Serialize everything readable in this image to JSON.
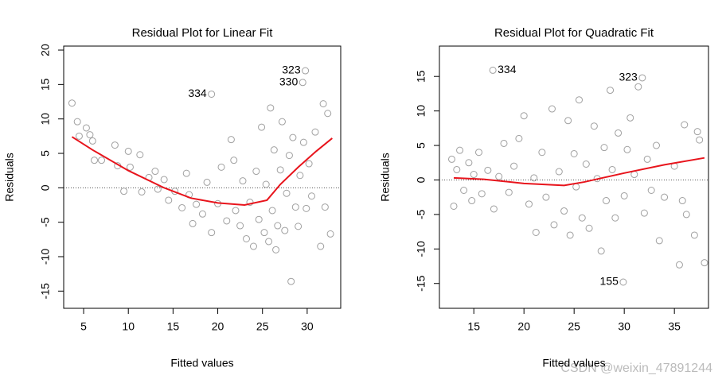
{
  "chart_data": [
    {
      "type": "scatter",
      "title": "Residual Plot for Linear Fit",
      "xlabel": "Fitted values",
      "ylabel": "Residuals",
      "xlim": [
        2.77,
        33.75
      ],
      "ylim": [
        -17.5,
        20.58
      ],
      "xticks": [
        5,
        10,
        15,
        20,
        25,
        30
      ],
      "yticks": [
        -15,
        -10,
        -5,
        0,
        5,
        10,
        15,
        20
      ],
      "hline": 0,
      "color": "#a0a0a0",
      "fit_color": "#e8141c",
      "x": [
        3.7,
        4.3,
        4.5,
        5.3,
        5.7,
        6,
        6.2,
        7,
        8.5,
        8.8,
        9.5,
        10,
        10.2,
        11.3,
        11.5,
        12.3,
        13,
        13.3,
        14,
        14.5,
        15.2,
        16,
        16.5,
        16.8,
        17.2,
        17.6,
        18.3,
        18.8,
        19.3,
        19.3,
        20,
        20.4,
        21,
        21.5,
        21.8,
        22,
        22.5,
        22.8,
        23.2,
        23.6,
        24,
        24.3,
        24.6,
        24.9,
        25.2,
        25.4,
        25.7,
        25.9,
        26.1,
        26.3,
        26.5,
        26.7,
        27,
        27.2,
        27.5,
        27.7,
        28,
        28.2,
        28.4,
        28.7,
        29,
        29.2,
        29.5,
        29.6,
        29.8,
        29.9,
        30.2,
        30.5,
        30.9,
        31.5,
        31.8,
        32,
        32.3,
        32.6
      ],
      "values": [
        12.3,
        9.6,
        7.5,
        8.7,
        7.7,
        6.8,
        4,
        4,
        6.2,
        3.2,
        -0.5,
        5.3,
        3,
        4.8,
        -0.6,
        1.5,
        2.4,
        -0.2,
        1.2,
        -1.8,
        -0.5,
        -2.9,
        2.1,
        -1,
        -5.2,
        -2.4,
        -3.8,
        0.8,
        -6.5,
        13.6,
        -2.3,
        3,
        -4.8,
        7,
        4,
        -3.3,
        -5.5,
        1,
        -7.4,
        -2.1,
        -8.5,
        2.4,
        -4.6,
        8.8,
        -6.5,
        0.5,
        -7.8,
        11.6,
        -3.3,
        5.5,
        -9,
        -5.5,
        2.6,
        9.6,
        -6.2,
        -0.8,
        4.7,
        -13.6,
        7.3,
        -2.8,
        -5.6,
        1.8,
        15.3,
        6.6,
        17,
        -3,
        3.5,
        -1.2,
        8.1,
        -8.5,
        12.2,
        -2.8,
        10.8,
        -6.7
      ],
      "fit": {
        "x": [
          3.7,
          6,
          10,
          14,
          17,
          20,
          23,
          25.5,
          27,
          29,
          31,
          32.8
        ],
        "values": [
          7.4,
          5.5,
          2.5,
          0,
          -1.5,
          -2.2,
          -2.5,
          -1.8,
          0.5,
          3,
          5.3,
          7.2
        ]
      },
      "annotations": [
        {
          "text": "334",
          "x": 19.3,
          "y": 13.6
        },
        {
          "text": "323",
          "x": 29.8,
          "y": 17
        },
        {
          "text": "330",
          "x": 29.5,
          "y": 15.3
        }
      ]
    },
    {
      "type": "scatter",
      "title": "Residual Plot for Quadratic Fit",
      "xlabel": "Fitted values",
      "ylabel": "Residuals",
      "xlim": [
        11.57,
        38.4
      ],
      "ylim": [
        -18.6,
        19.4
      ],
      "xticks": [
        15,
        20,
        25,
        30,
        35
      ],
      "yticks": [
        -15,
        -10,
        -5,
        0,
        5,
        10,
        15
      ],
      "hline": 0,
      "color": "#a0a0a0",
      "fit_color": "#e8141c",
      "x": [
        12.8,
        13,
        13.3,
        13.6,
        14,
        14.5,
        14.8,
        15,
        15.5,
        15.8,
        16.4,
        16.9,
        17,
        17.5,
        18,
        18.5,
        19,
        19.5,
        20,
        20.5,
        21,
        21.2,
        21.8,
        22.2,
        22.8,
        23,
        23.5,
        24,
        24.4,
        24.6,
        25,
        25.2,
        25.5,
        25.8,
        26.2,
        26.5,
        27,
        27.3,
        27.7,
        28,
        28.2,
        28.6,
        28.8,
        29.1,
        29.4,
        29.9,
        30,
        30.3,
        30.6,
        31,
        31.4,
        31.8,
        32,
        32.3,
        32.7,
        33.2,
        33.5,
        34,
        35,
        35.5,
        35.8,
        36,
        36.2,
        37,
        37.3,
        37.5,
        38
      ],
      "values": [
        3,
        -3.8,
        1.5,
        4.3,
        -1.5,
        2.5,
        -3,
        0.8,
        4,
        -2,
        1.4,
        15.9,
        -4.2,
        0.5,
        5.3,
        -1.8,
        2,
        6,
        9.3,
        -3.5,
        0.3,
        -7.6,
        4,
        -2.5,
        10.3,
        -6.5,
        1.2,
        -4.5,
        8.6,
        -8,
        3.8,
        -1,
        11.6,
        -5.5,
        2.3,
        -7,
        7.8,
        0.2,
        -10.3,
        4.7,
        -3,
        13,
        1.5,
        -5.5,
        6.8,
        -14.8,
        -2.3,
        4.4,
        9,
        0.8,
        13.5,
        14.8,
        -4.8,
        3,
        -1.5,
        5,
        -8.8,
        -2.5,
        2,
        -12.3,
        -3,
        8,
        -5,
        -8,
        7,
        5.8,
        -12
      ],
      "fit": {
        "x": [
          13,
          16,
          20,
          24,
          26,
          30,
          34,
          38
        ],
        "values": [
          0.3,
          0.1,
          -0.5,
          -0.8,
          -0.3,
          1,
          2.2,
          3.2
        ]
      },
      "annotations": [
        {
          "text": "334",
          "x": 16.9,
          "y": 15.9
        },
        {
          "text": "323",
          "x": 31.8,
          "y": 14.8
        },
        {
          "text": "155",
          "x": 29.9,
          "y": -14.8
        }
      ]
    }
  ],
  "watermark": "CSDN @weixin_47891244"
}
